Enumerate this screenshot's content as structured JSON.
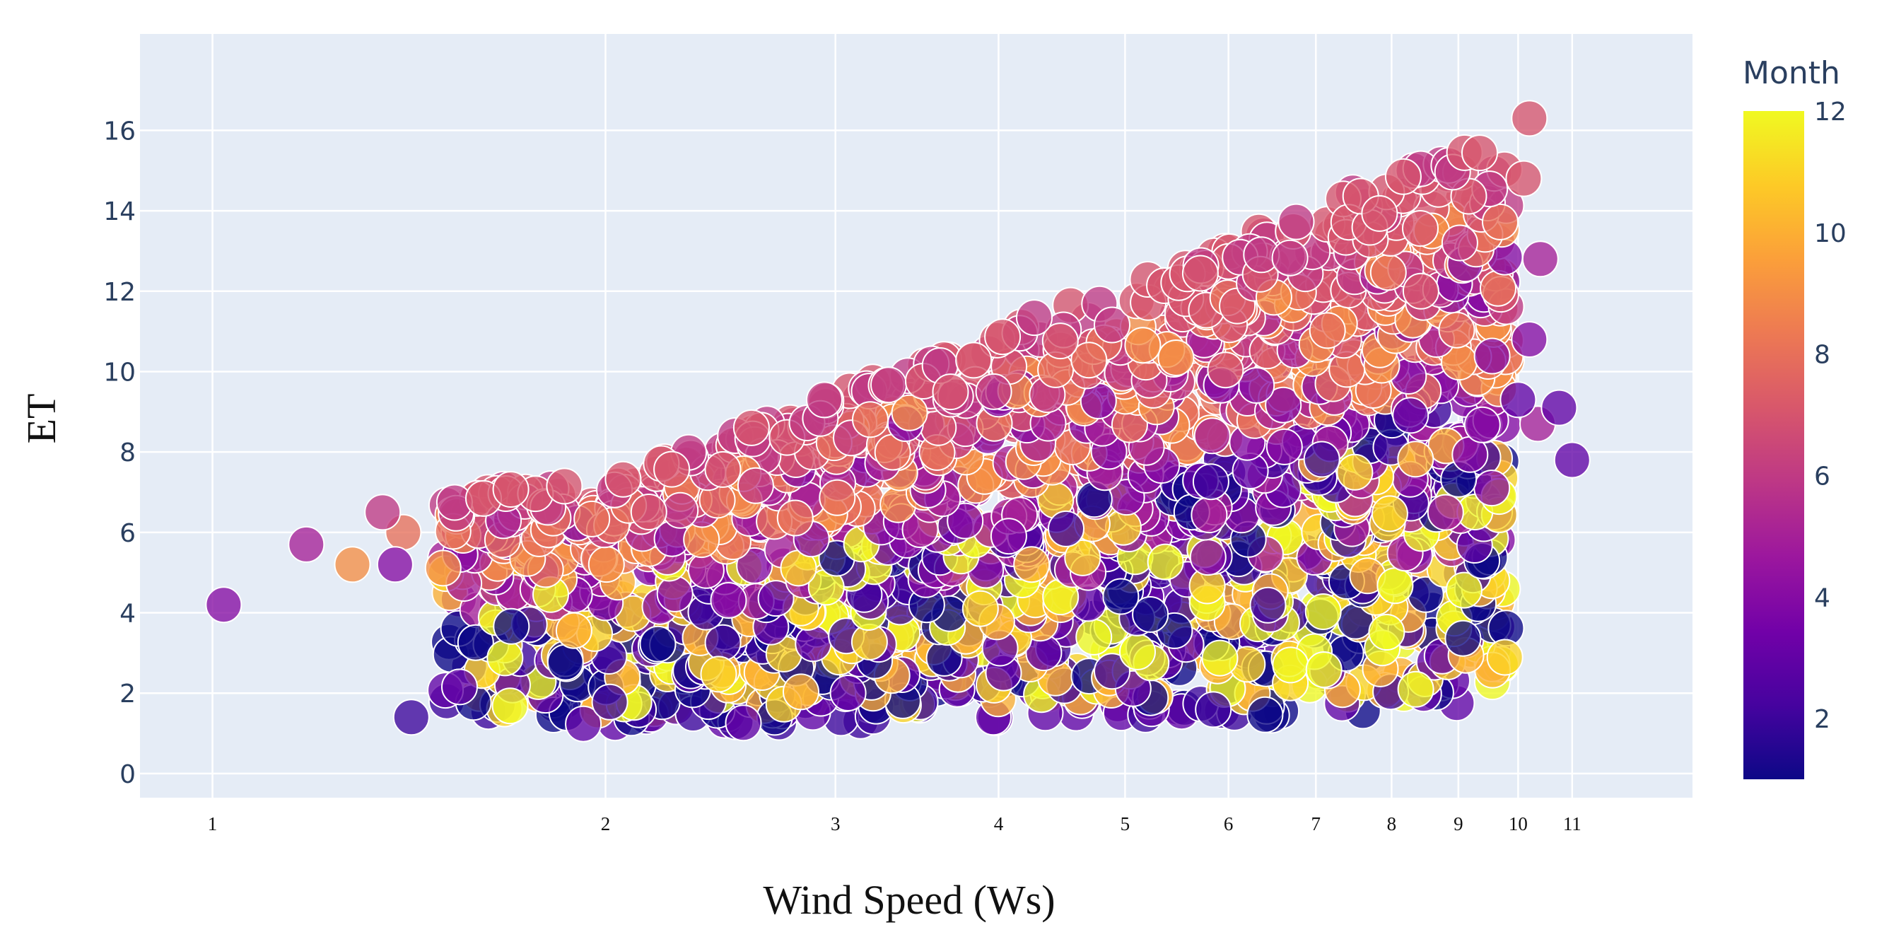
{
  "chart_data": {
    "type": "scatter",
    "xlabel": "Wind Speed (Ws)",
    "ylabel": "ET",
    "x_scale": "log",
    "xlim": [
      0.88,
      13.6
    ],
    "ylim": [
      -0.6,
      18.4
    ],
    "x_ticks": [
      "1",
      "2",
      "3",
      "4",
      "5",
      "6",
      "7",
      "8",
      "9",
      "10",
      "11"
    ],
    "y_ticks": [
      "0",
      "2",
      "4",
      "6",
      "8",
      "10",
      "12",
      "14",
      "16"
    ],
    "grid": true,
    "marker": "circle",
    "colorbar": {
      "title": "Month",
      "range": [
        1,
        12
      ],
      "ticks": [
        "2",
        "4",
        "6",
        "8",
        "10",
        "12"
      ],
      "colorscale": [
        "#0d0887",
        "#46039f",
        "#7201a8",
        "#9c179e",
        "#bd3786",
        "#d8576b",
        "#ed7953",
        "#fb9f3a",
        "#fdca26",
        "#f0f921"
      ]
    },
    "outlier_points": [
      {
        "x": 1.02,
        "y": 4.2,
        "month": 4
      },
      {
        "x": 1.18,
        "y": 5.7,
        "month": 5
      },
      {
        "x": 1.28,
        "y": 5.2,
        "month": 9
      },
      {
        "x": 1.35,
        "y": 6.5,
        "month": 6
      },
      {
        "x": 1.4,
        "y": 6.0,
        "month": 8
      },
      {
        "x": 1.38,
        "y": 5.2,
        "month": 4
      },
      {
        "x": 1.42,
        "y": 1.4,
        "month": 2
      },
      {
        "x": 1.52,
        "y": 4.5,
        "month": 10
      },
      {
        "x": 10.2,
        "y": 16.3,
        "month": 7
      },
      {
        "x": 10.1,
        "y": 14.8,
        "month": 7
      },
      {
        "x": 10.4,
        "y": 12.8,
        "month": 5
      },
      {
        "x": 10.2,
        "y": 10.8,
        "month": 4
      },
      {
        "x": 10.35,
        "y": 8.7,
        "month": 5
      },
      {
        "x": 10.75,
        "y": 9.1,
        "month": 3
      },
      {
        "x": 11.0,
        "y": 7.8,
        "month": 3
      },
      {
        "x": 10.0,
        "y": 9.3,
        "month": 3
      },
      {
        "x": 9.65,
        "y": 6.9,
        "month": 11
      }
    ],
    "cloud": {
      "approx_point_count": 2600,
      "x_range": [
        1.5,
        9.8
      ],
      "month_bands": [
        {
          "months": [
            6,
            7
          ],
          "et_range_at_x2": [
            6.0,
            7.2
          ],
          "et_range_at_x9": [
            11.5,
            15.5
          ]
        },
        {
          "months": [
            8,
            9
          ],
          "et_range_at_x2": [
            5.0,
            6.5
          ],
          "et_range_at_x9": [
            9.5,
            14.0
          ]
        },
        {
          "months": [
            4,
            5
          ],
          "et_range_at_x2": [
            4.0,
            6.5
          ],
          "et_range_at_x9": [
            5.5,
            13.0
          ]
        },
        {
          "months": [
            10,
            11,
            12
          ],
          "et_range_at_x2": [
            1.5,
            5.0
          ],
          "et_range_at_x9": [
            2.0,
            8.5
          ]
        },
        {
          "months": [
            1,
            2,
            3
          ],
          "et_range_at_x2": [
            1.2,
            4.0
          ],
          "et_range_at_x9": [
            1.5,
            9.5
          ]
        }
      ]
    }
  }
}
